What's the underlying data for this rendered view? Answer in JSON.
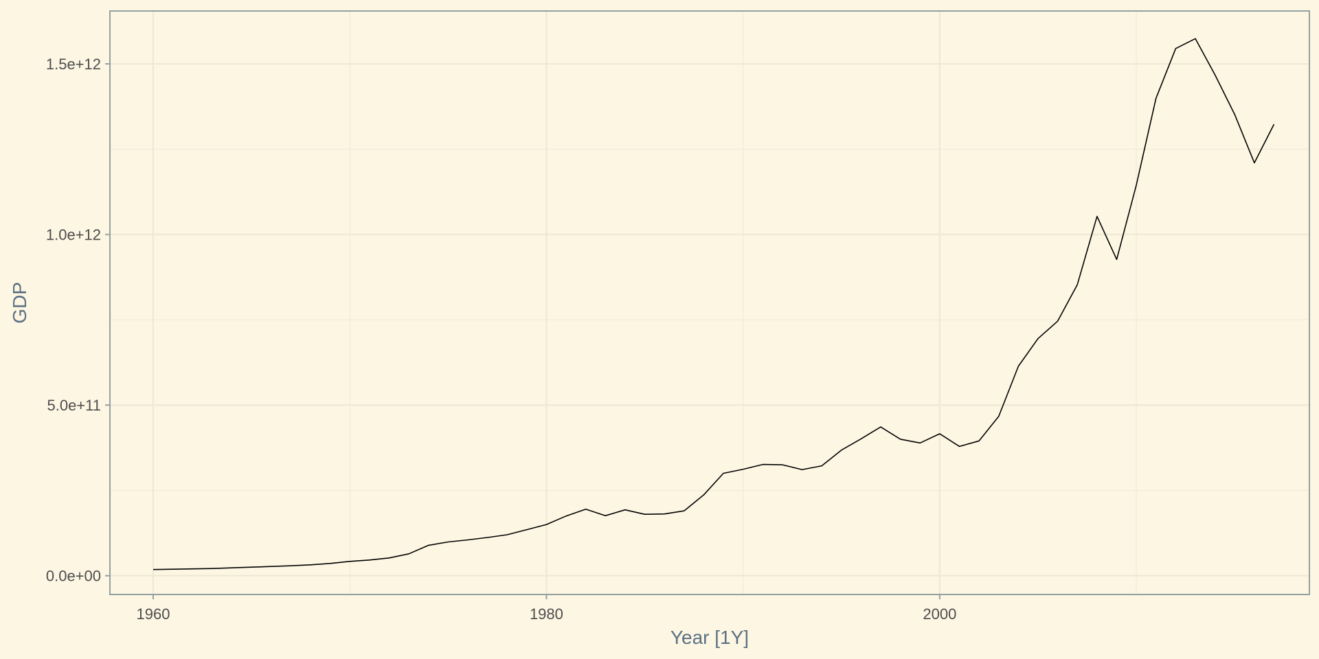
{
  "chart_data": {
    "type": "line",
    "title": "",
    "xlabel": "Year [1Y]",
    "ylabel": "GDP",
    "xlim": [
      1957.8,
      2018.8
    ],
    "ylim": [
      -55000000000,
      1655000000000
    ],
    "grid": true,
    "x_ticks": [
      {
        "value": 1960,
        "label": "1960"
      },
      {
        "value": 1980,
        "label": "1980"
      },
      {
        "value": 2000,
        "label": "2000"
      }
    ],
    "y_ticks": [
      {
        "value": 0,
        "label": "0.0e+00"
      },
      {
        "value": 500000000000,
        "label": "5.0e+11"
      },
      {
        "value": 1000000000000,
        "label": "1.0e+12"
      },
      {
        "value": 1500000000000,
        "label": "1.5e+12"
      }
    ],
    "colors": {
      "background": "#FDF6E3",
      "grid": "#EEE8D5",
      "line": "#000000",
      "frame": "#93A1A1",
      "tick_text": "#4D4D4D",
      "axis_title": "#5B7083"
    },
    "series": [
      {
        "x": [
          1960,
          1961,
          1962,
          1963,
          1964,
          1965,
          1966,
          1967,
          1968,
          1969,
          1970,
          1971,
          1972,
          1973,
          1974,
          1975,
          1976,
          1977,
          1978,
          1979,
          1980,
          1981,
          1982,
          1983,
          1984,
          1985,
          1986,
          1987,
          1988,
          1989,
          1990,
          1991,
          1992,
          1993,
          1994,
          1995,
          1996,
          1997,
          1998,
          1999,
          2000,
          2001,
          2002,
          2003,
          2004,
          2005,
          2006,
          2007,
          2008,
          2009,
          2010,
          2011,
          2012,
          2013,
          2014,
          2015,
          2016,
          2017
        ],
        "values": [
          18000000000,
          19000000000,
          20000000000,
          21000000000,
          23000000000,
          25000000000,
          27000000000,
          29000000000,
          32000000000,
          36000000000,
          42000000000,
          46000000000,
          52000000000,
          64000000000,
          89000000000,
          99000000000,
          105000000000,
          112000000000,
          120000000000,
          135000000000,
          150000000000,
          175000000000,
          195000000000,
          176000000000,
          193000000000,
          180000000000,
          181000000000,
          190000000000,
          237000000000,
          300000000000,
          312000000000,
          326000000000,
          325000000000,
          311000000000,
          322000000000,
          368000000000,
          401000000000,
          436000000000,
          400000000000,
          389000000000,
          416000000000,
          379000000000,
          395000000000,
          467000000000,
          614000000000,
          695000000000,
          746000000000,
          853000000000,
          1053000000000,
          927000000000,
          1145000000000,
          1399000000000,
          1545000000000,
          1574000000000,
          1468000000000,
          1352000000000,
          1210000000000,
          1323000000000
        ]
      }
    ]
  }
}
